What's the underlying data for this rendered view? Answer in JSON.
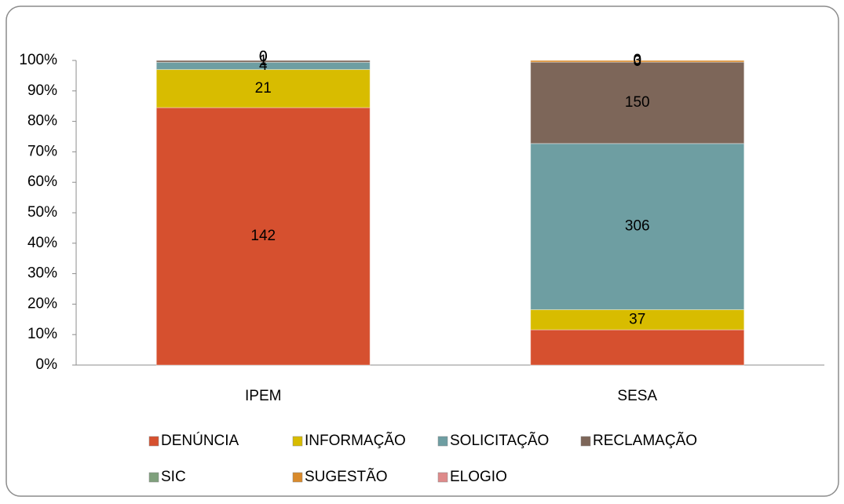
{
  "chart_data": {
    "type": "bar",
    "stacked": "percent",
    "categories": [
      "IPEM",
      "SESA"
    ],
    "series": [
      {
        "name": "DENÚNCIA",
        "color": "#d6502f",
        "values": [
          142,
          65
        ],
        "value_labels": [
          "142",
          null
        ]
      },
      {
        "name": "INFORMAÇÃO",
        "color": "#d8bc00",
        "values": [
          21,
          37
        ]
      },
      {
        "name": "SOLICITAÇÃO",
        "color": "#6e9ea2",
        "values": [
          4,
          306
        ]
      },
      {
        "name": "RECLAMAÇÃO",
        "color": "#7d6659",
        "values": [
          1,
          150
        ]
      },
      {
        "name": "SIC",
        "color": "#7fa07c",
        "values": [
          0,
          0
        ]
      },
      {
        "name": "SUGESTÃO",
        "color": "#d98a2b",
        "values": [
          0,
          3
        ]
      },
      {
        "name": "ELOGIO",
        "color": "#de8a8a",
        "values": [
          0,
          0
        ]
      }
    ],
    "ylim": [
      0,
      100
    ],
    "yticks": [
      {
        "value": 0,
        "label": "0%"
      },
      {
        "value": 10,
        "label": "10%"
      },
      {
        "value": 20,
        "label": "20%"
      },
      {
        "value": 30,
        "label": "30%"
      },
      {
        "value": 40,
        "label": "40%"
      },
      {
        "value": 50,
        "label": "50%"
      },
      {
        "value": 60,
        "label": "60%"
      },
      {
        "value": 70,
        "label": "70%"
      },
      {
        "value": 80,
        "label": "80%"
      },
      {
        "value": 90,
        "label": "90%"
      },
      {
        "value": 100,
        "label": "100%"
      }
    ],
    "legend": "bottom"
  }
}
